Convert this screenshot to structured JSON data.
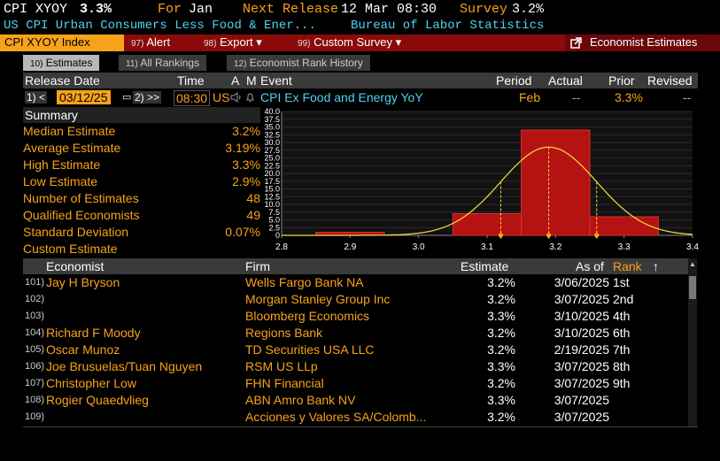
{
  "header": {
    "ticker": "CPI XYOY",
    "value": "3.3%",
    "for_label": "For",
    "for_value": "Jan",
    "next_release_label": "Next Release",
    "next_release_value": "12 Mar 08:30",
    "survey_label": "Survey",
    "survey_value": "3.2%",
    "subtitle": "US CPI Urban Consumers Less Food & Ener...",
    "source": "Bureau of Labor Statistics"
  },
  "menu": {
    "ticker_index": "CPI XYOY Index",
    "alert_num": "97)",
    "alert": "Alert",
    "export_num": "98)",
    "export": "Export",
    "custom_survey_num": "99)",
    "custom_survey": "Custom Survey",
    "economist_estimates": "Economist Estimates",
    "colors": {
      "menu_bg": "#8b0a0a",
      "accent": "#f7a21b"
    }
  },
  "tabs": [
    {
      "num": "10)",
      "label": "Estimates"
    },
    {
      "num": "11)",
      "label": "All Rankings"
    },
    {
      "num": "12)",
      "label": "Economist Rank History"
    }
  ],
  "release": {
    "headers": {
      "release_date": "Release Date",
      "time": "Time",
      "a": "A",
      "m": "M",
      "event": "Event",
      "period": "Period",
      "actual": "Actual",
      "prior": "Prior",
      "revised": "Revised"
    },
    "row": {
      "prev": "1) <",
      "date": "03/12/25",
      "next": "2) >>",
      "time": "08:30",
      "country": "US",
      "event": "CPI Ex Food and Energy YoY",
      "period": "Feb",
      "actual": "--",
      "prior": "3.3%",
      "revised": "--"
    }
  },
  "summary": {
    "title": "Summary",
    "rows": [
      {
        "label": "Median Estimate",
        "value": "3.2%"
      },
      {
        "label": "Average Estimate",
        "value": "3.19%"
      },
      {
        "label": "High Estimate",
        "value": "3.3%"
      },
      {
        "label": "Low Estimate",
        "value": "2.9%"
      },
      {
        "label": "Number of Estimates",
        "value": "48"
      },
      {
        "label": "Qualified Economists",
        "value": "49"
      },
      {
        "label": "Standard Deviation",
        "value": "0.07%"
      },
      {
        "label": "Custom Estimate",
        "value": ""
      }
    ]
  },
  "chart_data": {
    "type": "bar",
    "xlim": [
      2.8,
      3.4
    ],
    "ylim": [
      0,
      40
    ],
    "x_ticks": [
      "2.8",
      "2.9",
      "3.0",
      "3.1",
      "3.2",
      "3.3",
      "3.4"
    ],
    "y_ticks": [
      "40.0",
      "37.5",
      "35.0",
      "32.5",
      "30.0",
      "27.5",
      "25.0",
      "22.5",
      "20.0",
      "17.5",
      "15.0",
      "12.5",
      "10.0",
      "7.5",
      "5.0",
      "2.5",
      "0"
    ],
    "bins": [
      {
        "x0": 2.85,
        "x1": 2.95,
        "value": 1
      },
      {
        "x0": 3.05,
        "x1": 3.15,
        "value": 7
      },
      {
        "x0": 3.15,
        "x1": 3.25,
        "value": 34
      },
      {
        "x0": 3.25,
        "x1": 3.35,
        "value": 6
      }
    ],
    "normal_curve": {
      "mean": 3.19,
      "sd": 0.07,
      "peak": 28.5
    },
    "markers": [
      3.12,
      3.19,
      3.26
    ],
    "colors": {
      "bar": "#b51212",
      "curve": "#f0e040",
      "marker": "#f7a21b"
    }
  },
  "economists": {
    "headers": {
      "economist": "Economist",
      "firm": "Firm",
      "estimate": "Estimate",
      "as_of": "As of",
      "rank": "Rank"
    },
    "rows": [
      {
        "num": "101)",
        "name": "Jay H Bryson",
        "firm": "Wells Fargo Bank NA",
        "estimate": "3.2%",
        "as_of": "3/06/2025",
        "rank": "1st"
      },
      {
        "num": "102)",
        "name": "",
        "firm": "Morgan Stanley Group Inc",
        "estimate": "3.2%",
        "as_of": "3/07/2025",
        "rank": "2nd"
      },
      {
        "num": "103)",
        "name": "",
        "firm": "Bloomberg Economics",
        "estimate": "3.3%",
        "as_of": "3/10/2025",
        "rank": "4th"
      },
      {
        "num": "104)",
        "name": "Richard F Moody",
        "firm": "Regions Bank",
        "estimate": "3.2%",
        "as_of": "3/10/2025",
        "rank": "6th"
      },
      {
        "num": "105)",
        "name": "Oscar Munoz",
        "firm": "TD Securities USA LLC",
        "estimate": "3.2%",
        "as_of": "2/19/2025",
        "rank": "7th"
      },
      {
        "num": "106)",
        "name": "Joe Brusuelas/Tuan Nguyen",
        "firm": "RSM US LLp",
        "estimate": "3.3%",
        "as_of": "3/07/2025",
        "rank": "8th"
      },
      {
        "num": "107)",
        "name": "Christopher Low",
        "firm": "FHN Financial",
        "estimate": "3.2%",
        "as_of": "3/07/2025",
        "rank": "9th"
      },
      {
        "num": "108)",
        "name": "Rogier Quaedvlieg",
        "firm": "ABN Amro Bank NV",
        "estimate": "3.3%",
        "as_of": "3/07/2025",
        "rank": ""
      },
      {
        "num": "109)",
        "name": "",
        "firm": "Acciones y Valores SA/Colomb...",
        "estimate": "3.2%",
        "as_of": "3/07/2025",
        "rank": ""
      }
    ]
  }
}
